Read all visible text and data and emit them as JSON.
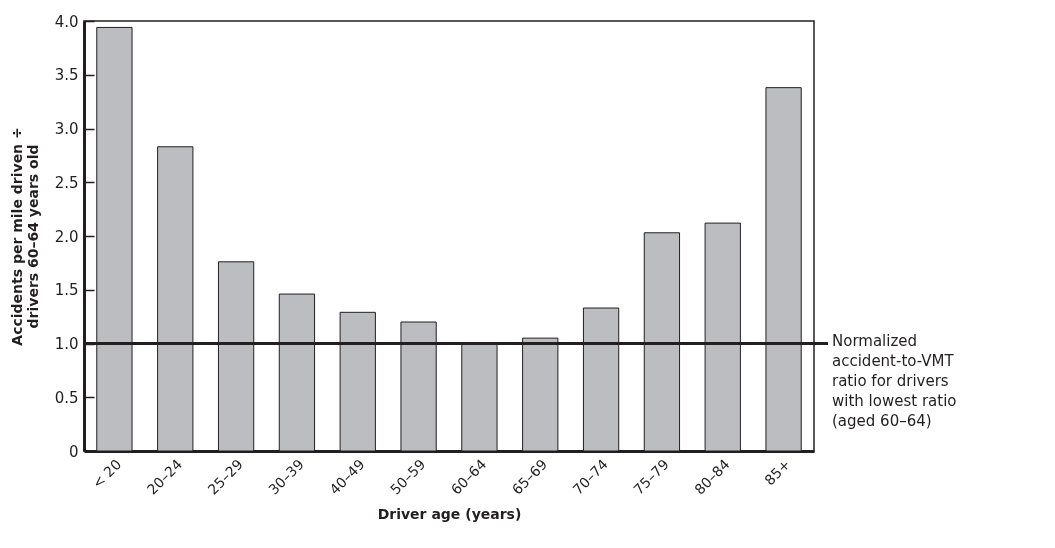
{
  "chart_data": {
    "type": "bar",
    "xlabel": "Driver age (years)",
    "ylabel": "Accidents per mile driven ÷ drivers 60–64 years old",
    "categories": [
      "< 20",
      "20–24",
      "25–29",
      "30–39",
      "40–49",
      "50–59",
      "60–64",
      "65–69",
      "70–74",
      "75–79",
      "80–84",
      "85+"
    ],
    "values": [
      3.94,
      2.83,
      1.76,
      1.46,
      1.29,
      1.2,
      1.0,
      1.05,
      1.33,
      2.03,
      2.12,
      3.38
    ],
    "color": "#bcbdc0",
    "ylim": [
      0,
      4
    ],
    "yticks": [
      0,
      0.5,
      {
        "value": 1,
        "label": "1.0"
      },
      1.5,
      {
        "value": 2,
        "label": "2.0"
      },
      2.5,
      {
        "value": 3,
        "label": "3.0"
      },
      3.5,
      {
        "value": 4,
        "label": "4.0"
      }
    ],
    "ref_lines": [
      {
        "axis": "y",
        "value": 1,
        "label": "Normalized accident-to-VMT ratio for drivers with lowest ratio (aged 60–64)",
        "color": "#231f20"
      }
    ],
    "grid": false
  }
}
